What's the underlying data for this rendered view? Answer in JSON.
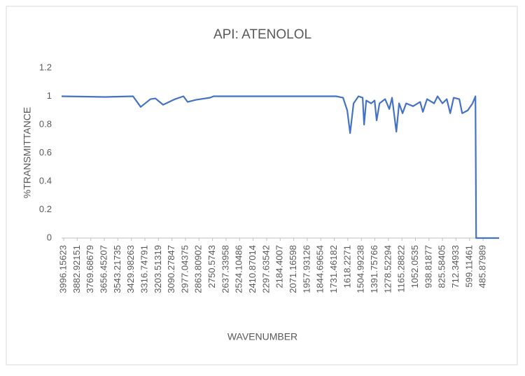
{
  "chart_data": {
    "type": "line",
    "title": "API: ATENOLOL",
    "x_label": "WAVENUMBER",
    "y_label": "%TRANSMITTANCE",
    "xlim": [
      4014,
      352
    ],
    "xticks": [
      3996.15623,
      3882.92151,
      3769.68679,
      3656.45207,
      3543.21735,
      3429.98263,
      3316.74791,
      3203.51319,
      3090.27847,
      2977.04375,
      2863.80902,
      2750.5743,
      2637.33958,
      2524.10486,
      2410.87014,
      2297.63542,
      2184.4007,
      2071.16598,
      1957.93126,
      1844.69654,
      1731.46182,
      1618.2271,
      1504.99238,
      1391.75766,
      1278.52294,
      1165.28822,
      1052.0535,
      938.81877,
      825.58405,
      712.34933,
      599.11461,
      485.87989
    ],
    "ylim": [
      0,
      1.2
    ],
    "yticks": [
      0,
      0.2,
      0.4,
      0.6,
      0.8,
      1,
      1.2
    ],
    "grid": false,
    "series": [
      {
        "name": "%TRANSMITTANCE",
        "color": "#4472c4",
        "x": [
          4014,
          3651,
          3416,
          3352,
          3270,
          3229,
          3164,
          3064,
          2994,
          2959,
          2889,
          2771,
          2742,
          1716,
          1658,
          1623,
          1599,
          1570,
          1529,
          1494,
          1482,
          1464,
          1423,
          1394,
          1377,
          1353,
          1306,
          1271,
          1248,
          1212,
          1189,
          1160,
          1130,
          1072,
          1013,
          990,
          955,
          896,
          867,
          826,
          790,
          761,
          732,
          685,
          661,
          615,
          574,
          550,
          544,
          352
        ],
        "values": [
          1.0,
          0.995,
          1.0,
          0.925,
          0.98,
          0.985,
          0.94,
          0.98,
          1.0,
          0.96,
          0.975,
          0.99,
          1.0,
          1.0,
          0.99,
          0.9,
          0.74,
          0.95,
          1.0,
          0.99,
          0.8,
          0.97,
          0.95,
          0.97,
          0.83,
          0.95,
          0.98,
          0.91,
          0.99,
          0.75,
          0.95,
          0.88,
          0.95,
          0.93,
          0.96,
          0.89,
          0.98,
          0.95,
          1.0,
          0.95,
          0.98,
          0.88,
          0.99,
          0.98,
          0.88,
          0.9,
          0.95,
          1.0,
          0,
          0
        ]
      }
    ]
  }
}
